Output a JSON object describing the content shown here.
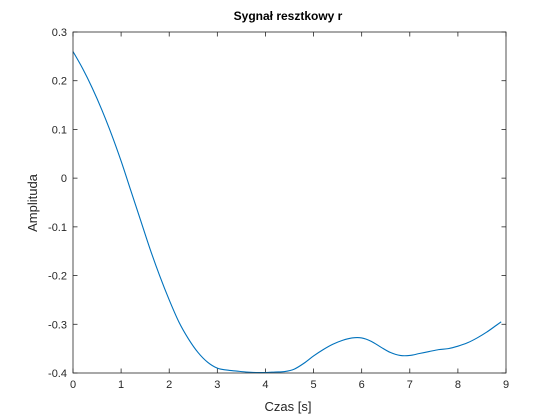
{
  "chart_data": {
    "type": "line",
    "title": "Sygnał resztkowy r",
    "xlabel": "Czas [s]",
    "ylabel": "Amplituda",
    "xlim": [
      0,
      9
    ],
    "ylim": [
      -0.4,
      0.3
    ],
    "xticks": [
      0,
      1,
      2,
      3,
      4,
      5,
      6,
      7,
      8,
      9
    ],
    "yticks": [
      -0.4,
      -0.3,
      -0.2,
      -0.1,
      0,
      0.1,
      0.2,
      0.3
    ],
    "xtick_labels": [
      "0",
      "1",
      "2",
      "3",
      "4",
      "5",
      "6",
      "7",
      "8",
      "9"
    ],
    "ytick_labels": [
      "-0.4",
      "-0.3",
      "-0.2",
      "-0.1",
      "0",
      "0.1",
      "0.2",
      "0.3"
    ],
    "grid": false,
    "series": [
      {
        "color": "#0072BD",
        "x": [
          0,
          0.2,
          0.4,
          0.6,
          0.8,
          1.0,
          1.2,
          1.4,
          1.6,
          1.8,
          2.0,
          2.2,
          2.4,
          2.6,
          2.8,
          3.0,
          3.2,
          3.4,
          3.6,
          3.8,
          4.0,
          4.2,
          4.4,
          4.6,
          4.8,
          5.0,
          5.2,
          5.4,
          5.6,
          5.8,
          6.0,
          6.2,
          6.4,
          6.6,
          6.8,
          7.0,
          7.2,
          7.4,
          7.6,
          7.8,
          8.0,
          8.2,
          8.4,
          8.6,
          8.8,
          8.9
        ],
        "y": [
          0.26,
          0.225,
          0.185,
          0.14,
          0.09,
          0.035,
          -0.025,
          -0.085,
          -0.145,
          -0.2,
          -0.25,
          -0.295,
          -0.33,
          -0.358,
          -0.378,
          -0.39,
          -0.394,
          -0.396,
          -0.398,
          -0.399,
          -0.399,
          -0.398,
          -0.397,
          -0.392,
          -0.38,
          -0.365,
          -0.352,
          -0.341,
          -0.333,
          -0.328,
          -0.328,
          -0.335,
          -0.347,
          -0.358,
          -0.364,
          -0.364,
          -0.36,
          -0.356,
          -0.352,
          -0.35,
          -0.345,
          -0.338,
          -0.328,
          -0.316,
          -0.302,
          -0.295
        ]
      }
    ]
  }
}
